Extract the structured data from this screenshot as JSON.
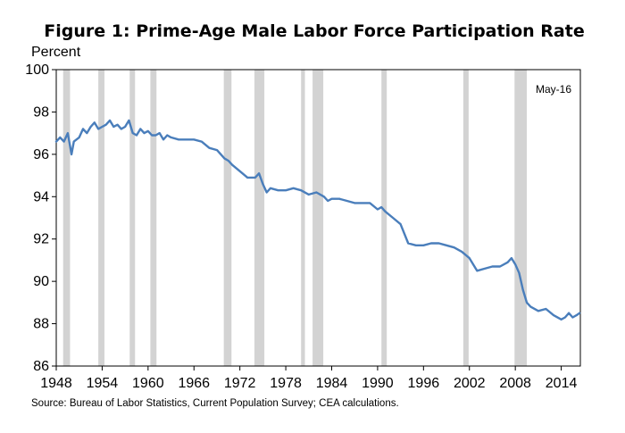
{
  "chart_data": {
    "type": "line",
    "title": "Figure 1: Prime-Age Male Labor Force Participation Rate",
    "ylabel": "Percent",
    "xlabel": "",
    "annotation": "May-16",
    "source": "Source: Bureau of Labor Statistics, Current Population Survey; CEA calculations.",
    "xlim": [
      1948,
      2016.5
    ],
    "ylim": [
      86,
      100
    ],
    "x_ticks": [
      1948,
      1954,
      1960,
      1966,
      1972,
      1978,
      1984,
      1990,
      1996,
      2002,
      2008,
      2014
    ],
    "y_ticks": [
      86,
      88,
      90,
      92,
      94,
      96,
      98,
      100
    ],
    "grid": false,
    "legend": "none",
    "line_color": "#4a7ebb",
    "recession_color": "#d3d3d3",
    "recessions": [
      [
        1948.9,
        1949.8
      ],
      [
        1953.5,
        1954.3
      ],
      [
        1957.6,
        1958.3
      ],
      [
        1960.3,
        1961.1
      ],
      [
        1969.9,
        1970.9
      ],
      [
        1973.9,
        1975.2
      ],
      [
        1980.0,
        1980.5
      ],
      [
        1981.5,
        1982.9
      ],
      [
        1990.5,
        1991.2
      ],
      [
        2001.2,
        2001.9
      ],
      [
        2007.9,
        2009.5
      ]
    ],
    "series": [
      {
        "x": [
          1948.0,
          1948.5,
          1949.0,
          1949.5,
          1950.0,
          1950.3,
          1951.0,
          1951.5,
          1952.0,
          1952.5,
          1953.0,
          1953.5,
          1954.0,
          1954.5,
          1955.0,
          1955.5,
          1956.0,
          1956.5,
          1957.0,
          1957.5,
          1958.0,
          1958.5,
          1959.0,
          1959.5,
          1960.0,
          1960.5,
          1961.0,
          1961.5,
          1962.0,
          1962.5,
          1963.0,
          1964.0,
          1965.0,
          1966.0,
          1967.0,
          1968.0,
          1969.0,
          1970.0,
          1970.5,
          1971.0,
          1972.0,
          1973.0,
          1974.0,
          1974.5,
          1975.0,
          1975.5,
          1976.0,
          1977.0,
          1978.0,
          1979.0,
          1980.0,
          1981.0,
          1982.0,
          1983.0,
          1983.5,
          1984.0,
          1985.0,
          1986.0,
          1987.0,
          1988.0,
          1989.0,
          1990.0,
          1990.5,
          1991.0,
          1992.0,
          1993.0,
          1994.0,
          1995.0,
          1996.0,
          1997.0,
          1998.0,
          1999.0,
          2000.0,
          2001.0,
          2002.0,
          2003.0,
          2004.0,
          2005.0,
          2006.0,
          2007.0,
          2007.5,
          2008.0,
          2008.5,
          2009.0,
          2009.5,
          2010.0,
          2011.0,
          2012.0,
          2013.0,
          2014.0,
          2014.5,
          2015.0,
          2015.5,
          2016.0,
          2016.4
        ],
        "values": [
          96.6,
          96.8,
          96.6,
          97.0,
          96.0,
          96.6,
          96.8,
          97.2,
          97.0,
          97.3,
          97.5,
          97.2,
          97.3,
          97.4,
          97.6,
          97.3,
          97.4,
          97.2,
          97.3,
          97.6,
          97.0,
          96.9,
          97.2,
          97.0,
          97.1,
          96.9,
          96.9,
          97.0,
          96.7,
          96.9,
          96.8,
          96.7,
          96.7,
          96.7,
          96.6,
          96.3,
          96.2,
          95.8,
          95.7,
          95.5,
          95.2,
          94.9,
          94.9,
          95.1,
          94.6,
          94.2,
          94.4,
          94.3,
          94.3,
          94.4,
          94.3,
          94.1,
          94.2,
          94.0,
          93.8,
          93.9,
          93.9,
          93.8,
          93.7,
          93.7,
          93.7,
          93.4,
          93.5,
          93.3,
          93.0,
          92.7,
          91.8,
          91.7,
          91.7,
          91.8,
          91.8,
          91.7,
          91.6,
          91.4,
          91.1,
          90.5,
          90.6,
          90.7,
          90.7,
          90.9,
          91.1,
          90.8,
          90.4,
          89.6,
          89.0,
          88.8,
          88.6,
          88.7,
          88.4,
          88.2,
          88.3,
          88.5,
          88.3,
          88.4,
          88.5
        ]
      }
    ]
  }
}
